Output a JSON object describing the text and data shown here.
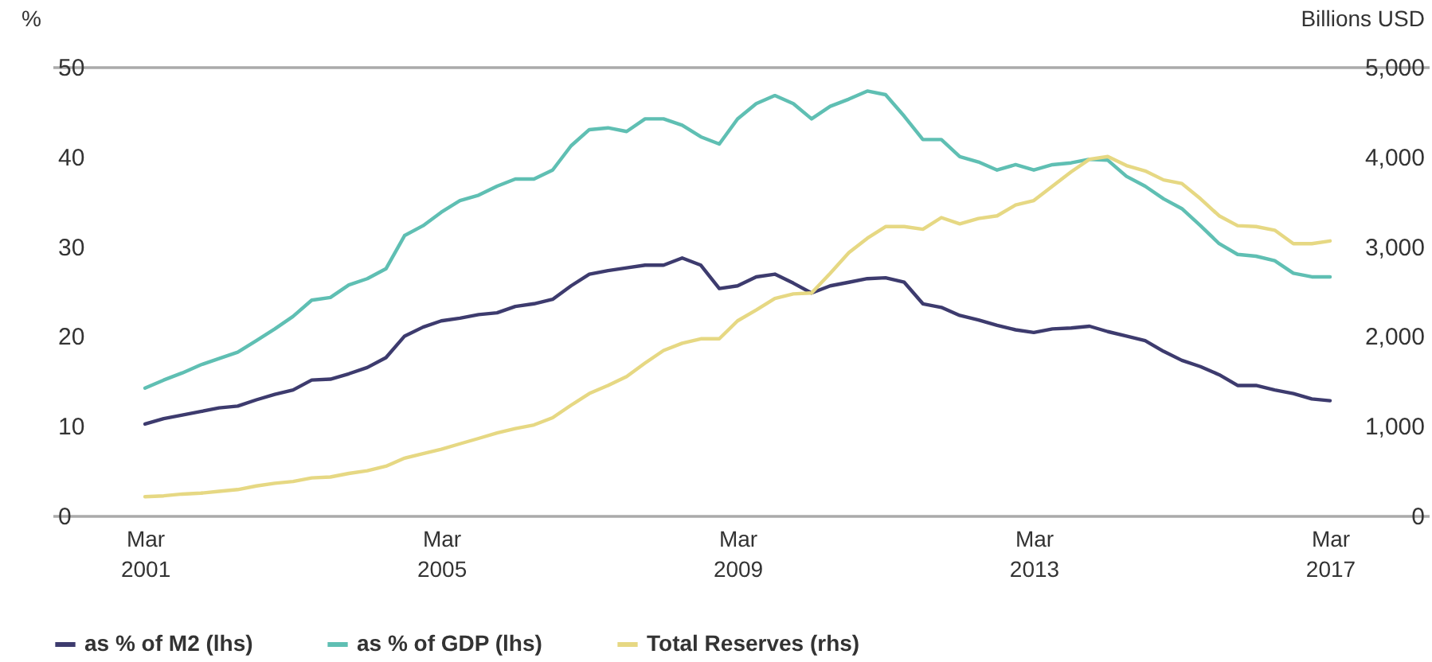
{
  "chart_data": {
    "type": "line",
    "ylabel": "%",
    "y2label": "Billions USD",
    "x": [
      "2001-03",
      "2001-06",
      "2001-09",
      "2001-12",
      "2002-03",
      "2002-06",
      "2002-09",
      "2002-12",
      "2003-03",
      "2003-06",
      "2003-09",
      "2003-12",
      "2004-03",
      "2004-06",
      "2004-09",
      "2004-12",
      "2005-03",
      "2005-06",
      "2005-09",
      "2005-12",
      "2006-03",
      "2006-06",
      "2006-09",
      "2006-12",
      "2007-03",
      "2007-06",
      "2007-09",
      "2007-12",
      "2008-03",
      "2008-06",
      "2008-09",
      "2008-12",
      "2009-03",
      "2009-06",
      "2009-09",
      "2009-12",
      "2010-03",
      "2010-06",
      "2010-09",
      "2010-12",
      "2011-03",
      "2011-06",
      "2011-09",
      "2011-12",
      "2012-03",
      "2012-06",
      "2012-09",
      "2012-12",
      "2013-03",
      "2013-06",
      "2013-09",
      "2013-12",
      "2014-03",
      "2014-06",
      "2014-09",
      "2014-12",
      "2015-03",
      "2015-06",
      "2015-09",
      "2015-12",
      "2016-03",
      "2016-06",
      "2016-09",
      "2016-12",
      "2017-03"
    ],
    "series": [
      {
        "name": "as % of M2 (lhs)",
        "color": "#3d3b6e",
        "values": [
          10.2,
          10.8,
          11.2,
          11.6,
          12.0,
          12.2,
          12.9,
          13.5,
          14.0,
          15.1,
          15.2,
          15.8,
          16.5,
          17.6,
          20.0,
          21.0,
          21.7,
          22.0,
          22.4,
          22.6,
          23.3,
          23.6,
          24.1,
          25.6,
          26.9,
          27.3,
          27.6,
          27.9,
          27.9,
          28.7,
          27.9,
          25.3,
          25.6,
          26.6,
          26.9,
          25.9,
          24.8,
          25.6,
          26.0,
          26.4,
          26.5,
          26.0,
          23.6,
          23.2,
          22.3,
          21.8,
          21.2,
          20.7,
          20.4,
          20.8,
          20.9,
          21.1,
          20.5,
          20.0,
          19.5,
          18.3,
          17.3,
          16.6,
          15.7,
          14.5,
          14.5,
          14.0,
          13.6,
          13.0,
          12.8
        ]
      },
      {
        "name": "as % of GDP (lhs)",
        "color": "#5fbfb3",
        "values": [
          14.2,
          15.1,
          15.9,
          16.8,
          17.5,
          18.2,
          19.5,
          20.8,
          22.2,
          24.0,
          24.3,
          25.7,
          26.4,
          27.5,
          31.2,
          32.3,
          33.8,
          35.1,
          35.7,
          36.7,
          37.5,
          37.5,
          38.5,
          41.2,
          43.0,
          43.2,
          42.8,
          44.2,
          44.2,
          43.5,
          42.2,
          41.4,
          44.2,
          45.9,
          46.8,
          45.9,
          44.2,
          45.6,
          46.4,
          47.3,
          46.9,
          44.5,
          41.9,
          41.9,
          40.0,
          39.4,
          38.5,
          39.1,
          38.5,
          39.1,
          39.3,
          39.7,
          39.6,
          37.8,
          36.7,
          35.3,
          34.2,
          32.3,
          30.3,
          29.1,
          28.9,
          28.4,
          27.0,
          26.6,
          26.6
        ]
      },
      {
        "name": "Total Reserves (rhs)",
        "color": "#e6d883",
        "axis": "y2",
        "values": [
          210,
          220,
          240,
          250,
          270,
          290,
          330,
          360,
          380,
          420,
          430,
          470,
          500,
          550,
          640,
          690,
          740,
          800,
          860,
          920,
          970,
          1010,
          1090,
          1230,
          1360,
          1450,
          1550,
          1700,
          1840,
          1920,
          1970,
          1970,
          2170,
          2290,
          2420,
          2470,
          2480,
          2700,
          2930,
          3090,
          3220,
          3220,
          3190,
          3320,
          3250,
          3310,
          3340,
          3460,
          3510,
          3670,
          3830,
          3970,
          4000,
          3900,
          3840,
          3740,
          3700,
          3530,
          3340,
          3230,
          3220,
          3180,
          3030,
          3030,
          3060
        ]
      }
    ],
    "xlim": [
      "1999-12",
      "2018-07"
    ],
    "xticks": [
      {
        "value": "2001-03",
        "label": "Mar 2001"
      },
      {
        "value": "2005-03",
        "label": "Mar 2005"
      },
      {
        "value": "2009-03",
        "label": "Mar 2009"
      },
      {
        "value": "2013-03",
        "label": "Mar 2013"
      },
      {
        "value": "2017-03",
        "label": "Mar 2017"
      }
    ],
    "ylim": [
      0,
      50
    ],
    "yticks": [
      0,
      10,
      20,
      30,
      40,
      50
    ],
    "y2lim": [
      0,
      5000
    ],
    "y2ticks": [
      0,
      {
        "value": 1000,
        "label": "1,000"
      },
      {
        "value": 2000,
        "label": "2,000"
      },
      {
        "value": 3000,
        "label": "3,000"
      },
      {
        "value": 4000,
        "label": "4,000"
      },
      {
        "value": 5000,
        "label": "5,000"
      }
    ],
    "legend": "bottom",
    "line_style": "solid",
    "marker": "none"
  }
}
